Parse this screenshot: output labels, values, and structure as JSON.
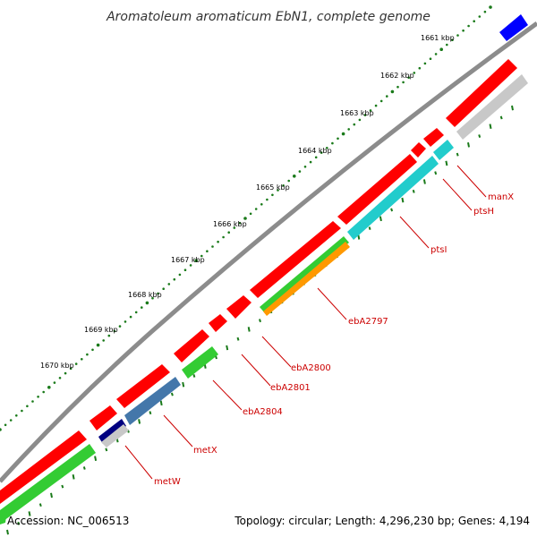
{
  "title": "Aromatoleum aromaticum EbN1, complete genome",
  "footer": {
    "accession": "Accession: NC_006513",
    "summary": "Topology: circular; Length: 4,296,230 bp; Genes: 4,194"
  },
  "ticks": [
    "1661 kbp",
    "1662 kbp",
    "1663 kbp",
    "1664 kbp",
    "1665 kbp",
    "1666 kbp",
    "1667 kbp",
    "1668 kbp",
    "1669 kbp",
    "1670 kbp"
  ],
  "gene_labels": [
    "manX",
    "ptsH",
    "ptsI",
    "ebA2797",
    "ebA2800",
    "ebA2801",
    "ebA2804",
    "metX",
    "metW"
  ],
  "colors": {
    "forward_cds": "#ff0000",
    "backbone": "#808080",
    "label": "#cc0000",
    "green": "#33cc33",
    "cyan": "#22cccc",
    "orange": "#ff9900",
    "steelblue": "#4477aa",
    "navy": "#000080",
    "grey": "#c8c8c8",
    "blue": "#0000ff",
    "tick_dot": "#1a7a1a"
  }
}
